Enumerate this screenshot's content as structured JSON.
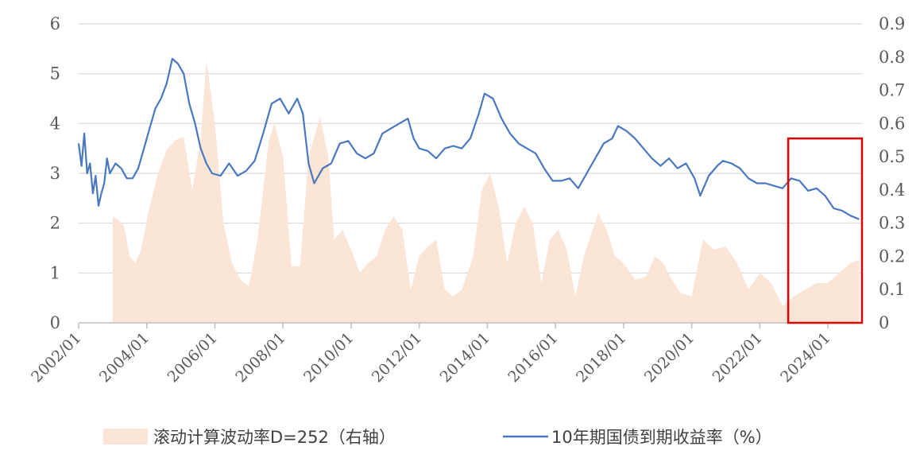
{
  "chart_data": {
    "type": "line",
    "colors": {
      "volatility": "#fbe5d6",
      "yield": "#4a78bf",
      "highlight": "#e00000",
      "grid": "#d9d9d9"
    },
    "x_range": [
      "2002/01",
      "2025/01"
    ],
    "x_ticks": [
      "2002/01",
      "2004/01",
      "2006/01",
      "2008/01",
      "2010/01",
      "2012/01",
      "2014/01",
      "2016/01",
      "2018/01",
      "2020/01",
      "2022/01",
      "2024/01"
    ],
    "y_left": {
      "range": [
        0,
        6
      ],
      "ticks": [
        "0",
        "1",
        "2",
        "3",
        "4",
        "5",
        "6"
      ]
    },
    "y_right": {
      "range": [
        0,
        0.9
      ],
      "ticks": [
        "0",
        "0.1",
        "0.2",
        "0.3",
        "0.4",
        "0.5",
        "0.6",
        "0.7",
        "0.8",
        "0.9"
      ]
    },
    "grid": true,
    "legend_position": "bottom",
    "highlight_box": {
      "x": [
        "2022/11",
        "2025/01"
      ],
      "y_left": [
        0,
        3.7
      ]
    },
    "series": [
      {
        "name": "滚动计算波动率D=252（右轴）",
        "type": "area",
        "axis": "right",
        "points": [
          [
            "2003/01",
            0
          ],
          [
            "2003/01",
            0.32
          ],
          [
            "2003/03",
            0.31
          ],
          [
            "2003/05",
            0.29
          ],
          [
            "2003/07",
            0.2
          ],
          [
            "2003/09",
            0.18
          ],
          [
            "2003/11",
            0.22
          ],
          [
            "2004/02",
            0.35
          ],
          [
            "2004/05",
            0.45
          ],
          [
            "2004/08",
            0.52
          ],
          [
            "2004/11",
            0.55
          ],
          [
            "2005/02",
            0.56
          ],
          [
            "2005/05",
            0.4
          ],
          [
            "2005/08",
            0.55
          ],
          [
            "2005/10",
            0.79
          ],
          [
            "2006/01",
            0.6
          ],
          [
            "2006/04",
            0.3
          ],
          [
            "2006/07",
            0.18
          ],
          [
            "2006/10",
            0.13
          ],
          [
            "2007/01",
            0.11
          ],
          [
            "2007/04",
            0.25
          ],
          [
            "2007/08",
            0.55
          ],
          [
            "2007/10",
            0.6
          ],
          [
            "2008/01",
            0.5
          ],
          [
            "2008/04",
            0.17
          ],
          [
            "2008/07",
            0.17
          ],
          [
            "2008/10",
            0.5
          ],
          [
            "2009/02",
            0.62
          ],
          [
            "2009/05",
            0.5
          ],
          [
            "2009/07",
            0.25
          ],
          [
            "2009/10",
            0.28
          ],
          [
            "2010/01",
            0.22
          ],
          [
            "2010/04",
            0.15
          ],
          [
            "2010/07",
            0.18
          ],
          [
            "2010/10",
            0.2
          ],
          [
            "2011/01",
            0.28
          ],
          [
            "2011/04",
            0.32
          ],
          [
            "2011/07",
            0.28
          ],
          [
            "2011/10",
            0.1
          ],
          [
            "2012/01",
            0.2
          ],
          [
            "2012/04",
            0.23
          ],
          [
            "2012/07",
            0.25
          ],
          [
            "2012/10",
            0.1
          ],
          [
            "2013/01",
            0.08
          ],
          [
            "2013/04",
            0.1
          ],
          [
            "2013/08",
            0.2
          ],
          [
            "2013/11",
            0.4
          ],
          [
            "2014/02",
            0.45
          ],
          [
            "2014/05",
            0.35
          ],
          [
            "2014/08",
            0.18
          ],
          [
            "2014/11",
            0.3
          ],
          [
            "2015/02",
            0.35
          ],
          [
            "2015/05",
            0.3
          ],
          [
            "2015/08",
            0.12
          ],
          [
            "2015/11",
            0.25
          ],
          [
            "2016/02",
            0.28
          ],
          [
            "2016/05",
            0.22
          ],
          [
            "2016/08",
            0.08
          ],
          [
            "2016/11",
            0.2
          ],
          [
            "2017/04",
            0.33
          ],
          [
            "2017/07",
            0.28
          ],
          [
            "2017/10",
            0.2
          ],
          [
            "2018/01",
            0.18
          ],
          [
            "2018/05",
            0.13
          ],
          [
            "2018/09",
            0.14
          ],
          [
            "2018/12",
            0.2
          ],
          [
            "2019/03",
            0.18
          ],
          [
            "2019/06",
            0.13
          ],
          [
            "2019/09",
            0.09
          ],
          [
            "2020/01",
            0.08
          ],
          [
            "2020/05",
            0.25
          ],
          [
            "2020/09",
            0.22
          ],
          [
            "2021/01",
            0.23
          ],
          [
            "2021/05",
            0.18
          ],
          [
            "2021/09",
            0.1
          ],
          [
            "2022/01",
            0.15
          ],
          [
            "2022/05",
            0.12
          ],
          [
            "2022/09",
            0.05
          ],
          [
            "2023/01",
            0.08
          ],
          [
            "2023/05",
            0.1
          ],
          [
            "2023/09",
            0.12
          ],
          [
            "2024/01",
            0.12
          ],
          [
            "2024/05",
            0.15
          ],
          [
            "2024/09",
            0.18
          ],
          [
            "2024/12",
            0.19
          ],
          [
            "2024/12",
            0
          ]
        ]
      },
      {
        "name": "10年期国债到期收益率（%）",
        "type": "line",
        "axis": "left",
        "points": [
          [
            "2002/01",
            3.6
          ],
          [
            "2002/02",
            3.15
          ],
          [
            "2002/03",
            3.8
          ],
          [
            "2002/04",
            3.0
          ],
          [
            "2002/05",
            3.2
          ],
          [
            "2002/06",
            2.6
          ],
          [
            "2002/07",
            2.95
          ],
          [
            "2002/08",
            2.35
          ],
          [
            "2002/09",
            2.6
          ],
          [
            "2002/10",
            2.8
          ],
          [
            "2002/11",
            3.3
          ],
          [
            "2002/12",
            3.0
          ],
          [
            "2003/02",
            3.2
          ],
          [
            "2003/04",
            3.1
          ],
          [
            "2003/06",
            2.9
          ],
          [
            "2003/08",
            2.9
          ],
          [
            "2003/10",
            3.1
          ],
          [
            "2003/12",
            3.5
          ],
          [
            "2004/02",
            3.9
          ],
          [
            "2004/04",
            4.3
          ],
          [
            "2004/06",
            4.5
          ],
          [
            "2004/08",
            4.8
          ],
          [
            "2004/10",
            5.3
          ],
          [
            "2004/12",
            5.2
          ],
          [
            "2005/02",
            5.0
          ],
          [
            "2005/04",
            4.4
          ],
          [
            "2005/06",
            4.0
          ],
          [
            "2005/08",
            3.5
          ],
          [
            "2005/10",
            3.2
          ],
          [
            "2005/12",
            3.0
          ],
          [
            "2006/03",
            2.95
          ],
          [
            "2006/06",
            3.2
          ],
          [
            "2006/09",
            2.95
          ],
          [
            "2006/12",
            3.05
          ],
          [
            "2007/03",
            3.25
          ],
          [
            "2007/06",
            3.8
          ],
          [
            "2007/09",
            4.4
          ],
          [
            "2007/12",
            4.5
          ],
          [
            "2008/03",
            4.2
          ],
          [
            "2008/06",
            4.5
          ],
          [
            "2008/08",
            4.2
          ],
          [
            "2008/10",
            3.2
          ],
          [
            "2008/12",
            2.8
          ],
          [
            "2009/03",
            3.1
          ],
          [
            "2009/06",
            3.2
          ],
          [
            "2009/09",
            3.6
          ],
          [
            "2009/12",
            3.65
          ],
          [
            "2010/03",
            3.4
          ],
          [
            "2010/06",
            3.3
          ],
          [
            "2010/09",
            3.4
          ],
          [
            "2010/12",
            3.8
          ],
          [
            "2011/03",
            3.9
          ],
          [
            "2011/06",
            4.0
          ],
          [
            "2011/09",
            4.1
          ],
          [
            "2011/11",
            3.7
          ],
          [
            "2012/01",
            3.5
          ],
          [
            "2012/04",
            3.45
          ],
          [
            "2012/07",
            3.3
          ],
          [
            "2012/10",
            3.5
          ],
          [
            "2013/01",
            3.55
          ],
          [
            "2013/04",
            3.5
          ],
          [
            "2013/07",
            3.7
          ],
          [
            "2013/10",
            4.2
          ],
          [
            "2013/12",
            4.6
          ],
          [
            "2014/03",
            4.5
          ],
          [
            "2014/06",
            4.1
          ],
          [
            "2014/09",
            3.8
          ],
          [
            "2014/12",
            3.6
          ],
          [
            "2015/03",
            3.5
          ],
          [
            "2015/06",
            3.4
          ],
          [
            "2015/09",
            3.1
          ],
          [
            "2015/12",
            2.85
          ],
          [
            "2016/03",
            2.85
          ],
          [
            "2016/06",
            2.9
          ],
          [
            "2016/09",
            2.7
          ],
          [
            "2016/12",
            3.0
          ],
          [
            "2017/03",
            3.3
          ],
          [
            "2017/06",
            3.6
          ],
          [
            "2017/09",
            3.7
          ],
          [
            "2017/11",
            3.95
          ],
          [
            "2018/02",
            3.85
          ],
          [
            "2018/05",
            3.7
          ],
          [
            "2018/08",
            3.5
          ],
          [
            "2018/11",
            3.3
          ],
          [
            "2019/02",
            3.15
          ],
          [
            "2019/05",
            3.3
          ],
          [
            "2019/08",
            3.1
          ],
          [
            "2019/11",
            3.2
          ],
          [
            "2020/02",
            2.9
          ],
          [
            "2020/04",
            2.55
          ],
          [
            "2020/07",
            2.95
          ],
          [
            "2020/10",
            3.15
          ],
          [
            "2020/12",
            3.25
          ],
          [
            "2021/03",
            3.2
          ],
          [
            "2021/06",
            3.1
          ],
          [
            "2021/09",
            2.9
          ],
          [
            "2021/12",
            2.8
          ],
          [
            "2022/03",
            2.8
          ],
          [
            "2022/06",
            2.75
          ],
          [
            "2022/09",
            2.7
          ],
          [
            "2022/12",
            2.9
          ],
          [
            "2023/03",
            2.85
          ],
          [
            "2023/06",
            2.65
          ],
          [
            "2023/09",
            2.7
          ],
          [
            "2023/12",
            2.55
          ],
          [
            "2024/03",
            2.3
          ],
          [
            "2024/06",
            2.25
          ],
          [
            "2024/09",
            2.15
          ],
          [
            "2024/12",
            2.08
          ]
        ]
      }
    ]
  }
}
